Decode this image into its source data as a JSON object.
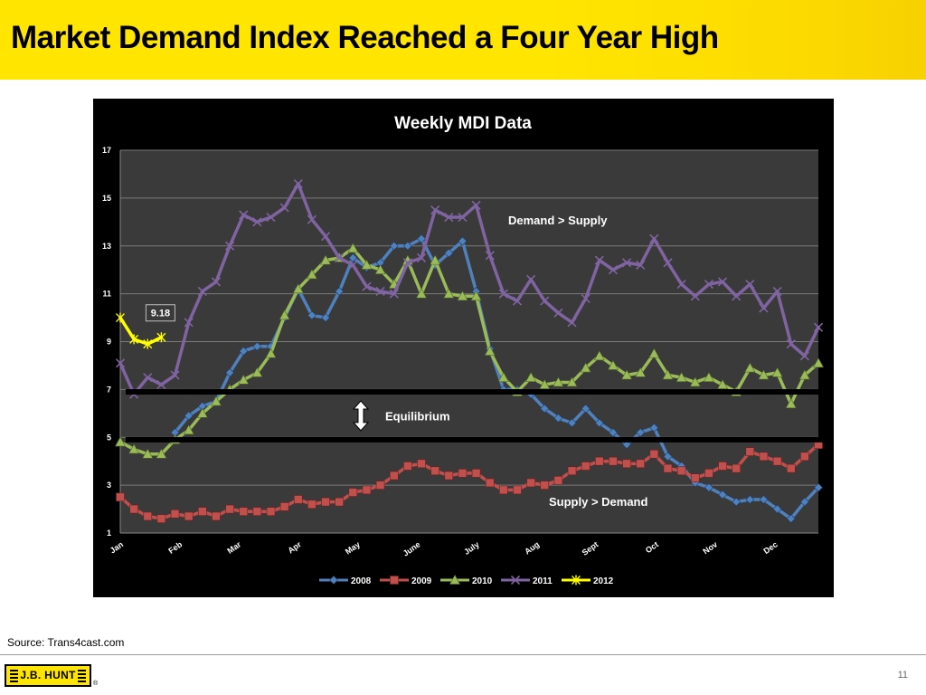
{
  "slide": {
    "title": "Market Demand Index Reached a Four Year High",
    "source": "Source:  Trans4cast.com",
    "page_number": "11",
    "logo_text": "J.B. HUNT",
    "registered_mark": "®"
  },
  "colors": {
    "header_bg": "#FFE500",
    "chart_bg": "#000000",
    "plot_bg": "#3a3a3a",
    "s2008": "#4F81BD",
    "s2009": "#C0504D",
    "s2010": "#9BBB59",
    "s2011": "#8064A2",
    "s2012": "#FFFF00"
  },
  "chart_data": {
    "type": "line",
    "title": "Weekly MDI Data",
    "xlabel": "",
    "ylabel": "",
    "ylim": [
      1,
      17
    ],
    "yticks": [
      1,
      3,
      5,
      7,
      9,
      11,
      13,
      15,
      17
    ],
    "weeks": 52,
    "grid": true,
    "legend_position": "bottom",
    "months": [
      {
        "label": "Jan",
        "week": 0
      },
      {
        "label": "Feb",
        "week": 4.3
      },
      {
        "label": "Mar",
        "week": 8.6
      },
      {
        "label": "Apr",
        "week": 13
      },
      {
        "label": "May",
        "week": 17.3
      },
      {
        "label": "June",
        "week": 21.7
      },
      {
        "label": "July",
        "week": 26
      },
      {
        "label": "Aug",
        "week": 30.4
      },
      {
        "label": "Sept",
        "week": 34.7
      },
      {
        "label": "Oct",
        "week": 39.1
      },
      {
        "label": "Nov",
        "week": 43.4
      },
      {
        "label": "Dec",
        "week": 47.8
      }
    ],
    "equilibrium_band": [
      4.9,
      6.9
    ],
    "annotations": {
      "demand_gt_supply": "Demand > Supply",
      "supply_gt_demand": "Supply > Demand",
      "equilibrium": "Equilibrium",
      "last_value_label": "9.18"
    },
    "series": [
      {
        "name": "2008",
        "color": "#4F81BD",
        "marker": "diamond",
        "values": [
          null,
          null,
          null,
          null,
          5.2,
          5.9,
          6.3,
          6.5,
          7.7,
          8.6,
          8.8,
          8.8,
          10.0,
          11.2,
          10.1,
          10.0,
          11.1,
          12.5,
          12.1,
          12.3,
          13.0,
          13.0,
          13.3,
          12.2,
          12.7,
          13.2,
          11.1,
          8.7,
          7.0,
          7.0,
          6.8,
          6.2,
          5.8,
          5.6,
          6.2,
          5.6,
          5.2,
          4.7,
          5.2,
          5.4,
          4.2,
          3.8,
          3.1,
          2.9,
          2.6,
          2.3,
          2.4,
          2.4,
          2.0,
          1.6,
          2.3,
          2.9
        ]
      },
      {
        "name": "2009",
        "color": "#C0504D",
        "marker": "square",
        "values": [
          2.5,
          2.0,
          1.7,
          1.6,
          1.8,
          1.7,
          1.9,
          1.7,
          2.0,
          1.9,
          1.9,
          1.9,
          2.1,
          2.4,
          2.2,
          2.3,
          2.3,
          2.7,
          2.8,
          3.0,
          3.4,
          3.8,
          3.9,
          3.6,
          3.4,
          3.5,
          3.5,
          3.1,
          2.8,
          2.8,
          3.1,
          3.0,
          3.2,
          3.6,
          3.8,
          4.0,
          4.0,
          3.9,
          3.9,
          4.3,
          3.7,
          3.6,
          3.3,
          3.5,
          3.8,
          3.7,
          4.4,
          4.2,
          4.0,
          3.7,
          4.2,
          4.7
        ]
      },
      {
        "name": "2010",
        "color": "#9BBB59",
        "marker": "triangle",
        "values": [
          4.8,
          4.5,
          4.3,
          4.3,
          4.9,
          5.3,
          6.0,
          6.5,
          7.0,
          7.4,
          7.7,
          8.5,
          10.1,
          11.2,
          11.8,
          12.4,
          12.5,
          12.9,
          12.2,
          12.0,
          11.4,
          12.4,
          11.0,
          12.4,
          11.0,
          10.9,
          10.9,
          8.6,
          7.5,
          6.9,
          7.5,
          7.2,
          7.3,
          7.3,
          7.9,
          8.4,
          8.0,
          7.6,
          7.7,
          8.5,
          7.6,
          7.5,
          7.3,
          7.5,
          7.2,
          6.9,
          7.9,
          7.6,
          7.7,
          6.4,
          7.6,
          8.1
        ]
      },
      {
        "name": "2011",
        "color": "#8064A2",
        "marker": "x",
        "values": [
          8.1,
          6.8,
          7.5,
          7.2,
          7.6,
          9.8,
          11.1,
          11.5,
          13.0,
          14.3,
          14.0,
          14.2,
          14.6,
          15.6,
          14.1,
          13.4,
          12.5,
          12.2,
          11.3,
          11.1,
          11.0,
          12.3,
          12.5,
          14.5,
          14.2,
          14.2,
          14.7,
          12.6,
          11.0,
          10.7,
          11.6,
          10.7,
          10.2,
          9.8,
          10.8,
          12.4,
          12.0,
          12.3,
          12.2,
          13.3,
          12.3,
          11.4,
          10.9,
          11.4,
          11.5,
          10.9,
          11.4,
          10.4,
          11.1,
          8.9,
          8.4,
          9.6
        ]
      },
      {
        "name": "2012",
        "color": "#FFFF00",
        "marker": "star",
        "values": [
          10.0,
          9.1,
          8.9,
          9.18
        ]
      }
    ]
  }
}
